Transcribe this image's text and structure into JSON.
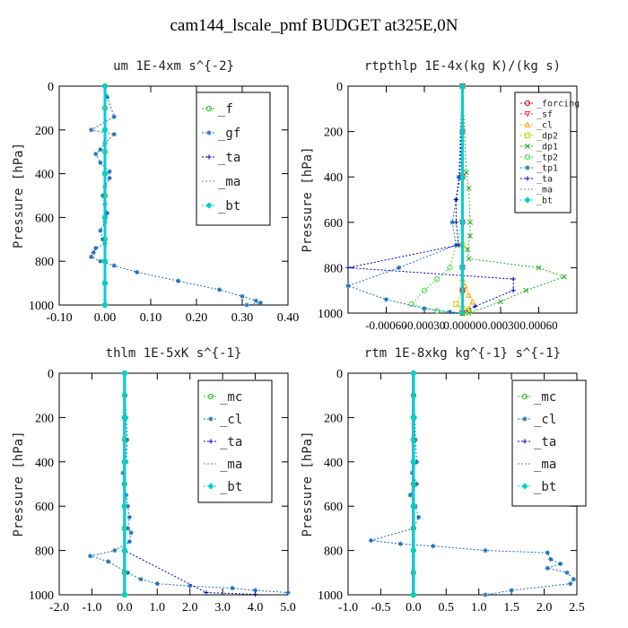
{
  "figure_title": "cam144_lscale_pmf  BUDGET at325E,0N",
  "chart_data": [
    {
      "type": "line",
      "title": "um  1E-4xm s^{-2}",
      "xlabel": "",
      "ylabel": "Pressure [hPa]",
      "xlim": [
        -0.1,
        0.4
      ],
      "ylim": [
        1000,
        0
      ],
      "xticks": [
        "-0.10",
        "0.00",
        "0.10",
        "0.20",
        "0.30",
        "0.40"
      ],
      "xtick_values": [
        -0.1,
        0.0,
        0.1,
        0.2,
        0.3,
        0.4
      ],
      "yticks": [
        0,
        200,
        400,
        600,
        800,
        1000
      ],
      "grid": false,
      "legend_position": "top-right",
      "series": [
        {
          "name": "_f",
          "color": "#22bb22",
          "marker": "o",
          "x": [
            0,
            0,
            0,
            0,
            0,
            0,
            0,
            0,
            0,
            0,
            0
          ],
          "y": [
            0,
            100,
            200,
            300,
            400,
            500,
            600,
            700,
            800,
            900,
            1000
          ]
        },
        {
          "name": "_gf",
          "color": "#1a6fbf",
          "marker": "*",
          "x": [
            0,
            0.005,
            0.02,
            -0.03,
            0.02,
            0,
            -0.01,
            -0.02,
            -0.01,
            0.01,
            0.01,
            0,
            -0.005,
            0,
            0.005,
            0,
            -0.01,
            -0.005,
            0,
            -0.02,
            -0.025,
            -0.03,
            -0.01,
            0.02,
            0.07,
            0.16,
            0.25,
            0.3,
            0.33,
            0.34,
            0.31
          ],
          "y": [
            0,
            50,
            140,
            200,
            220,
            260,
            290,
            310,
            350,
            390,
            420,
            460,
            500,
            540,
            580,
            620,
            660,
            700,
            720,
            740,
            760,
            780,
            800,
            820,
            850,
            890,
            930,
            960,
            980,
            990,
            1000
          ]
        },
        {
          "name": "_ta",
          "color": "#0000cc",
          "marker": "+",
          "x": [
            0,
            0,
            0,
            0,
            0,
            0,
            0
          ],
          "y": [
            0,
            200,
            400,
            600,
            800,
            900,
            1000
          ]
        },
        {
          "name": "_ma",
          "color": "#5c8fd6",
          "marker": "-",
          "x": [
            0,
            0,
            0,
            0,
            0,
            0,
            0
          ],
          "y": [
            0,
            200,
            400,
            600,
            800,
            900,
            1000
          ]
        },
        {
          "name": "_bt",
          "color": "#00d0d0",
          "marker": "diamond",
          "x": [
            0,
            0,
            0,
            0,
            0,
            0,
            0
          ],
          "y": [
            0,
            200,
            400,
            600,
            800,
            900,
            1000
          ]
        }
      ]
    },
    {
      "type": "line",
      "title": "rtpthlp  1E-4x(kg K)/(kg s)",
      "xlabel": "",
      "ylabel": "Pressure [hPa]",
      "xlim": [
        -0.0009,
        0.0009
      ],
      "ylim": [
        1000,
        0
      ],
      "xticks": [
        "-0.00060",
        "-0.00030",
        "0.00000",
        "0.00030",
        "0.00060"
      ],
      "xtick_values": [
        -0.0006,
        -0.0003,
        0.0,
        0.0003,
        0.0006
      ],
      "yticks": [
        0,
        200,
        400,
        600,
        800,
        1000
      ],
      "grid": false,
      "legend_position": "top-right",
      "series": [
        {
          "name": "_forcing",
          "color": "#cc0000",
          "marker": "o",
          "x": [
            0,
            0,
            0,
            0,
            0,
            0,
            0
          ],
          "y": [
            0,
            200,
            400,
            600,
            800,
            900,
            1000
          ]
        },
        {
          "name": "_sf",
          "color": "#ff3333",
          "marker": "v",
          "x": [
            0,
            0,
            0,
            0,
            0,
            0,
            0
          ],
          "y": [
            0,
            200,
            400,
            600,
            800,
            900,
            1000
          ]
        },
        {
          "name": "_cl",
          "color": "#ffaa00",
          "marker": "^",
          "x": [
            0,
            0,
            0,
            0,
            2e-05,
            5e-05,
            8e-05,
            5e-05,
            0
          ],
          "y": [
            0,
            400,
            700,
            850,
            880,
            920,
            950,
            980,
            1000
          ]
        },
        {
          "name": "_dp2",
          "color": "#cccc00",
          "marker": "square",
          "x": [
            0,
            0,
            0,
            0,
            -5e-05,
            0,
            5e-05,
            0
          ],
          "y": [
            0,
            400,
            700,
            900,
            960,
            980,
            990,
            1000
          ]
        },
        {
          "name": "_dp1",
          "color": "#22aa22",
          "marker": "x",
          "x": [
            0,
            3e-05,
            5e-05,
            6e-05,
            6e-05,
            4e-05,
            5e-05,
            0.0006,
            0.0008,
            0.0005,
            0.0003,
            5e-05
          ],
          "y": [
            0,
            380,
            450,
            600,
            660,
            720,
            760,
            800,
            840,
            900,
            950,
            1000
          ]
        },
        {
          "name": "_tp2",
          "color": "#44dd44",
          "marker": "o",
          "x": [
            0,
            0,
            -0.0001,
            -0.0002,
            -0.0003,
            -0.0004,
            -0.0002,
            0
          ],
          "y": [
            0,
            600,
            800,
            850,
            900,
            960,
            990,
            1000
          ]
        },
        {
          "name": "_tp1",
          "color": "#1a6fbf",
          "marker": "*",
          "x": [
            0,
            -3e-05,
            -5e-05,
            -8e-05,
            -5e-05,
            -0.0005,
            -0.0009,
            -0.0006,
            -0.0003,
            -0.0001,
            0
          ],
          "y": [
            0,
            400,
            500,
            600,
            700,
            800,
            880,
            940,
            980,
            995,
            1000
          ]
        },
        {
          "name": "_ta",
          "color": "#0000cc",
          "marker": "+",
          "x": [
            0,
            -2e-05,
            -5e-05,
            -5e-05,
            -3e-05,
            -0.0009,
            0.0004,
            0.0004,
            0.0001,
            0
          ],
          "y": [
            0,
            400,
            500,
            600,
            700,
            800,
            850,
            900,
            970,
            1000
          ]
        },
        {
          "name": "_ma",
          "color": "#5c8fd6",
          "marker": "-",
          "x": [
            0,
            0,
            0,
            0,
            0,
            0
          ],
          "y": [
            0,
            200,
            400,
            600,
            800,
            1000
          ]
        },
        {
          "name": "_bt",
          "color": "#00d0d0",
          "marker": "diamond",
          "x": [
            0,
            0,
            0,
            0,
            0,
            0
          ],
          "y": [
            0,
            200,
            400,
            600,
            800,
            1000
          ]
        }
      ]
    },
    {
      "type": "line",
      "title": "thlm  1E-5xK s^{-1}",
      "xlabel": "",
      "ylabel": "Pressure [hPa]",
      "xlim": [
        -2.0,
        5.0
      ],
      "ylim": [
        1000,
        0
      ],
      "xticks": [
        "-2.0",
        "-1.0",
        "0.0",
        "1.0",
        "2.0",
        "3.0",
        "4.0",
        "5.0"
      ],
      "xtick_values": [
        -2,
        -1,
        0,
        1,
        2,
        3,
        4,
        5
      ],
      "yticks": [
        0,
        200,
        400,
        600,
        800,
        1000
      ],
      "grid": false,
      "legend_position": "top-right",
      "series": [
        {
          "name": "_mc",
          "color": "#22bb22",
          "marker": "o",
          "x": [
            0,
            0,
            0,
            0,
            0,
            0,
            0,
            0,
            0,
            0,
            0
          ],
          "y": [
            0,
            100,
            200,
            300,
            400,
            500,
            600,
            700,
            800,
            900,
            1000
          ]
        },
        {
          "name": "_cl",
          "color": "#1a6fbf",
          "marker": "*",
          "x": [
            0,
            0.02,
            0.05,
            0.08,
            0.05,
            -0.05,
            -0.02,
            0.05,
            0.1,
            0.15,
            0.1,
            0.2,
            0.15,
            -0.3,
            -1.05,
            -0.5,
            0.1,
            0.5,
            1.0,
            2.0,
            3.3,
            4.0,
            5.0
          ],
          "y": [
            0,
            100,
            200,
            300,
            400,
            450,
            500,
            550,
            600,
            650,
            700,
            720,
            760,
            800,
            825,
            850,
            900,
            930,
            950,
            960,
            970,
            980,
            990
          ]
        },
        {
          "name": "_ta",
          "color": "#0000cc",
          "marker": "+",
          "x": [
            0,
            0,
            0,
            0,
            0,
            2.5,
            4.0
          ],
          "y": [
            0,
            200,
            400,
            600,
            800,
            990,
            998
          ]
        },
        {
          "name": "_ma",
          "color": "#5c8fd6",
          "marker": "-",
          "x": [
            0,
            0,
            0,
            0,
            0,
            0
          ],
          "y": [
            0,
            200,
            400,
            600,
            800,
            1000
          ]
        },
        {
          "name": "_bt",
          "color": "#00d0d0",
          "marker": "diamond",
          "x": [
            0,
            0,
            0,
            0,
            0,
            0
          ],
          "y": [
            0,
            200,
            400,
            600,
            800,
            1000
          ]
        }
      ]
    },
    {
      "type": "line",
      "title": "rtm  1E-8xkg kg^{-1} s^{-1}",
      "xlabel": "",
      "ylabel": "Pressure [hPa]",
      "xlim": [
        -1.0,
        2.5
      ],
      "ylim": [
        1000,
        0
      ],
      "xticks": [
        "-1.0",
        "-0.5",
        "0.0",
        "0.5",
        "1.0",
        "1.5",
        "2.0",
        "2.5"
      ],
      "xtick_values": [
        -1,
        -0.5,
        0,
        0.5,
        1,
        1.5,
        2,
        2.5
      ],
      "yticks": [
        0,
        200,
        400,
        600,
        800,
        1000
      ],
      "grid": false,
      "legend_position": "top-right",
      "series": [
        {
          "name": "_mc",
          "color": "#22bb22",
          "marker": "o",
          "x": [
            0,
            0,
            0,
            0,
            0,
            0,
            0,
            0,
            0,
            0,
            0
          ],
          "y": [
            0,
            100,
            200,
            300,
            400,
            500,
            600,
            700,
            800,
            900,
            1000
          ]
        },
        {
          "name": "_cl",
          "color": "#1a6fbf",
          "marker": "*",
          "x": [
            0,
            0.01,
            0.02,
            0.03,
            0.05,
            -0.02,
            0.05,
            -0.05,
            0.03,
            0.08,
            0.0,
            -0.65,
            -0.2,
            0.3,
            1.1,
            2.05,
            2.1,
            2.25,
            2.05,
            2.35,
            2.45,
            2.4,
            1.5,
            1.1
          ],
          "y": [
            0,
            100,
            200,
            300,
            400,
            450,
            500,
            550,
            600,
            650,
            700,
            755,
            770,
            780,
            800,
            810,
            840,
            860,
            880,
            900,
            930,
            950,
            980,
            1000
          ]
        },
        {
          "name": "_ta",
          "color": "#0000cc",
          "marker": "+",
          "x": [
            0,
            0,
            0,
            0,
            0,
            0
          ],
          "y": [
            0,
            200,
            400,
            600,
            800,
            1000
          ]
        },
        {
          "name": "_ma",
          "color": "#5c8fd6",
          "marker": "-",
          "x": [
            0,
            0,
            0,
            0,
            0,
            0
          ],
          "y": [
            0,
            200,
            400,
            600,
            800,
            1000
          ]
        },
        {
          "name": "_bt",
          "color": "#00d0d0",
          "marker": "diamond",
          "x": [
            0,
            0,
            0,
            0,
            0,
            0
          ],
          "y": [
            0,
            200,
            400,
            600,
            800,
            1000
          ]
        }
      ]
    }
  ]
}
